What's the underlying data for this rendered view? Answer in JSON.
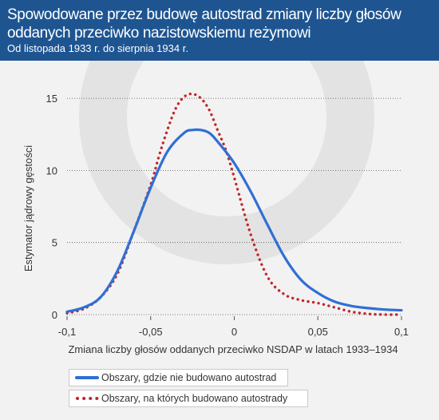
{
  "title": "Spowodowane przez budowę autostrad zmiany liczby głosów oddanych przeciwko nazistowskiemu reżymowi",
  "subtitle": "Od listopada 1933 r. do sierpnia 1934 r.",
  "colors": {
    "header_bg": "#1e5591",
    "plot_bg": "#f2f2f2",
    "series_blue": "#2f6fd6",
    "series_red": "#c0282d",
    "grid": "#555555"
  },
  "chart_data": {
    "type": "line",
    "title": "Spowodowane przez budowę autostrad zmiany liczby głosów oddanych przeciwko nazistowskiemu reżymowi",
    "subtitle": "Od listopada 1933 r. do sierpnia 1934 r.",
    "xlabel": "Zmiana liczby głosów oddanych przeciwko NSDAP w latach 1933–1934",
    "ylabel": "Estymator jądrowy gęstości",
    "xlim": [
      -0.1,
      0.1
    ],
    "ylim": [
      0,
      16.5
    ],
    "x_ticks": [
      -0.1,
      -0.05,
      0,
      0.05,
      0.1
    ],
    "x_tick_labels": [
      "-0,1",
      "-0,05",
      "0",
      "0,05",
      "0,1"
    ],
    "y_ticks": [
      0,
      5,
      10,
      15
    ],
    "y_tick_labels": [
      "0",
      "5",
      "10",
      "15"
    ],
    "grid": "horizontal dotted",
    "legend_position": "bottom-left",
    "series": [
      {
        "name": "Obszary, gdzie nie budowano autostrad",
        "style": "solid",
        "color": "#2f6fd6",
        "x": [
          -0.1,
          -0.09,
          -0.08,
          -0.07,
          -0.06,
          -0.05,
          -0.04,
          -0.03,
          -0.025,
          -0.02,
          -0.015,
          -0.01,
          0,
          0.01,
          0.02,
          0.03,
          0.04,
          0.05,
          0.06,
          0.07,
          0.08,
          0.09,
          0.1
        ],
        "y": [
          0.2,
          0.5,
          1.2,
          3.0,
          5.8,
          8.8,
          11.3,
          12.6,
          12.8,
          12.8,
          12.6,
          12.0,
          10.5,
          8.5,
          6.2,
          4.0,
          2.4,
          1.5,
          0.9,
          0.6,
          0.45,
          0.35,
          0.3
        ]
      },
      {
        "name": "Obszary, na których budowano autostrady",
        "style": "dotted",
        "color": "#c0282d",
        "x": [
          -0.1,
          -0.09,
          -0.08,
          -0.07,
          -0.06,
          -0.05,
          -0.045,
          -0.04,
          -0.035,
          -0.03,
          -0.025,
          -0.02,
          -0.015,
          -0.01,
          -0.005,
          0,
          0.01,
          0.02,
          0.03,
          0.04,
          0.05,
          0.06,
          0.07,
          0.08,
          0.09,
          0.1
        ],
        "y": [
          0.1,
          0.4,
          1.2,
          2.8,
          5.8,
          9.0,
          11.0,
          12.8,
          14.3,
          15.1,
          15.3,
          15.0,
          14.2,
          12.8,
          11.4,
          9.5,
          5.5,
          2.6,
          1.4,
          1.0,
          0.8,
          0.5,
          0.2,
          0.05,
          0.0,
          0.0
        ]
      }
    ]
  }
}
